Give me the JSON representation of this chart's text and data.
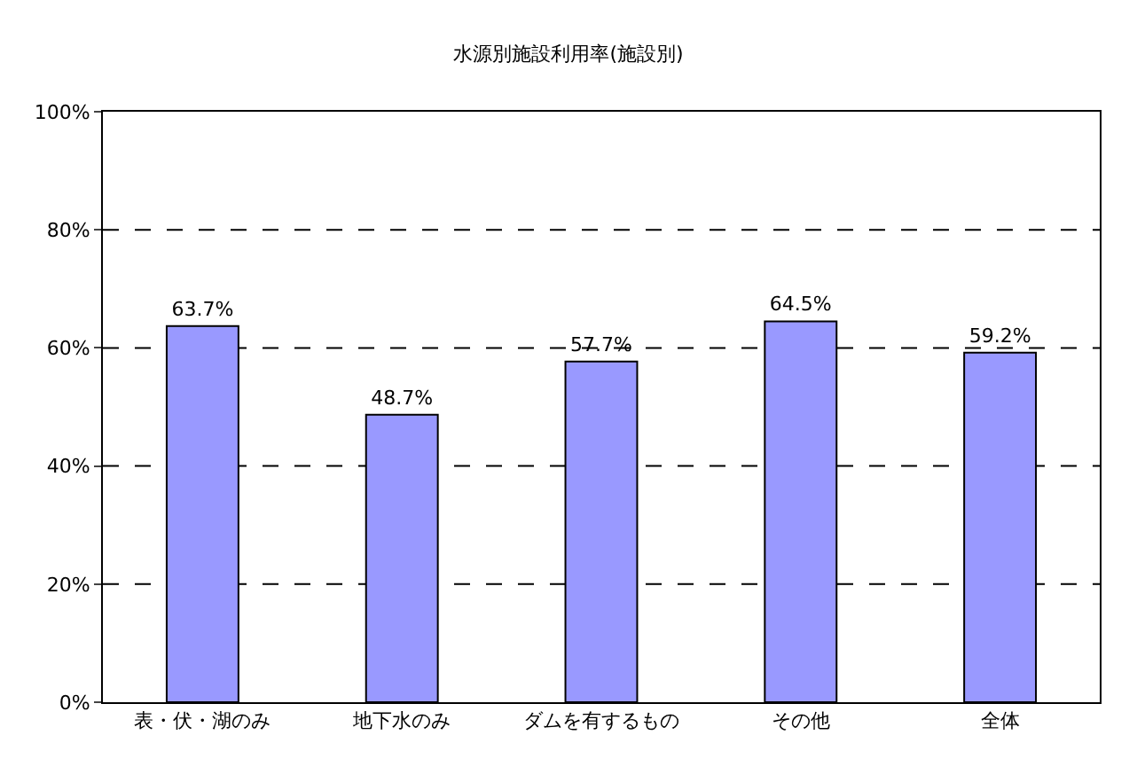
{
  "chart_data": {
    "type": "bar",
    "title": "水源別施設利用率(施設別)",
    "categories": [
      "表・伏・湖のみ",
      "地下水のみ",
      "ダムを有するもの",
      "その他",
      "全体"
    ],
    "values": [
      63.7,
      48.7,
      57.7,
      64.5,
      59.2
    ],
    "value_labels": [
      "63.7%",
      "48.7%",
      "57.7%",
      "64.5%",
      "59.2%"
    ],
    "color": "#9999ff",
    "ylim": [
      0,
      100
    ],
    "yticks": [
      {
        "value": 0,
        "label": "0%"
      },
      {
        "value": 20,
        "label": "20%"
      },
      {
        "value": 40,
        "label": "40%"
      },
      {
        "value": 60,
        "label": "60%"
      },
      {
        "value": 80,
        "label": "80%"
      },
      {
        "value": 100,
        "label": "100%"
      }
    ],
    "grid": "y"
  }
}
